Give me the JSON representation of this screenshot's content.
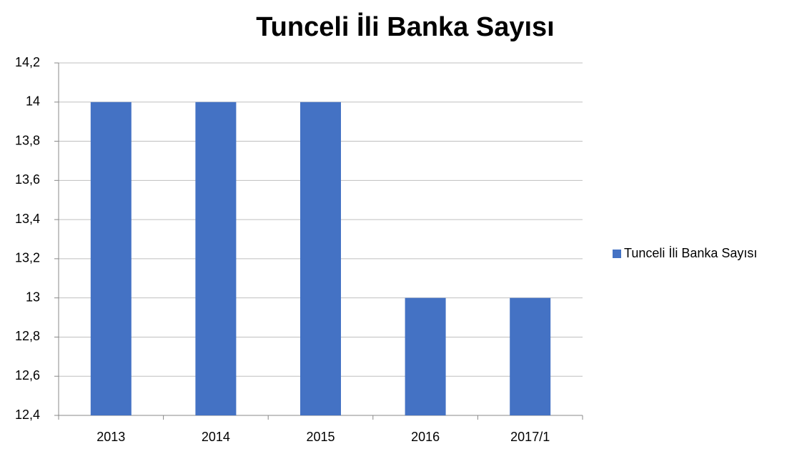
{
  "chart_data": {
    "type": "bar",
    "title": "Tunceli İli Banka Sayısı",
    "categories": [
      "2013",
      "2014",
      "2015",
      "2016",
      "2017/1"
    ],
    "series": [
      {
        "name": "Tunceli İli Banka Sayısı",
        "color": "#4472c4",
        "values": [
          14,
          14,
          14,
          13,
          13
        ]
      }
    ],
    "ylim": [
      12.4,
      14.2
    ],
    "yticks": [
      {
        "value": 12.4,
        "label": "12,4"
      },
      {
        "value": 12.6,
        "label": "12,6"
      },
      {
        "value": 12.8,
        "label": "12,8"
      },
      13,
      {
        "value": 13.2,
        "label": "13,2"
      },
      {
        "value": 13.4,
        "label": "13,4"
      },
      {
        "value": 13.6,
        "label": "13,6"
      },
      {
        "value": 13.8,
        "label": "13,8"
      },
      14,
      {
        "value": 14.2,
        "label": "14,2"
      }
    ],
    "grid": true,
    "legend": "right"
  }
}
